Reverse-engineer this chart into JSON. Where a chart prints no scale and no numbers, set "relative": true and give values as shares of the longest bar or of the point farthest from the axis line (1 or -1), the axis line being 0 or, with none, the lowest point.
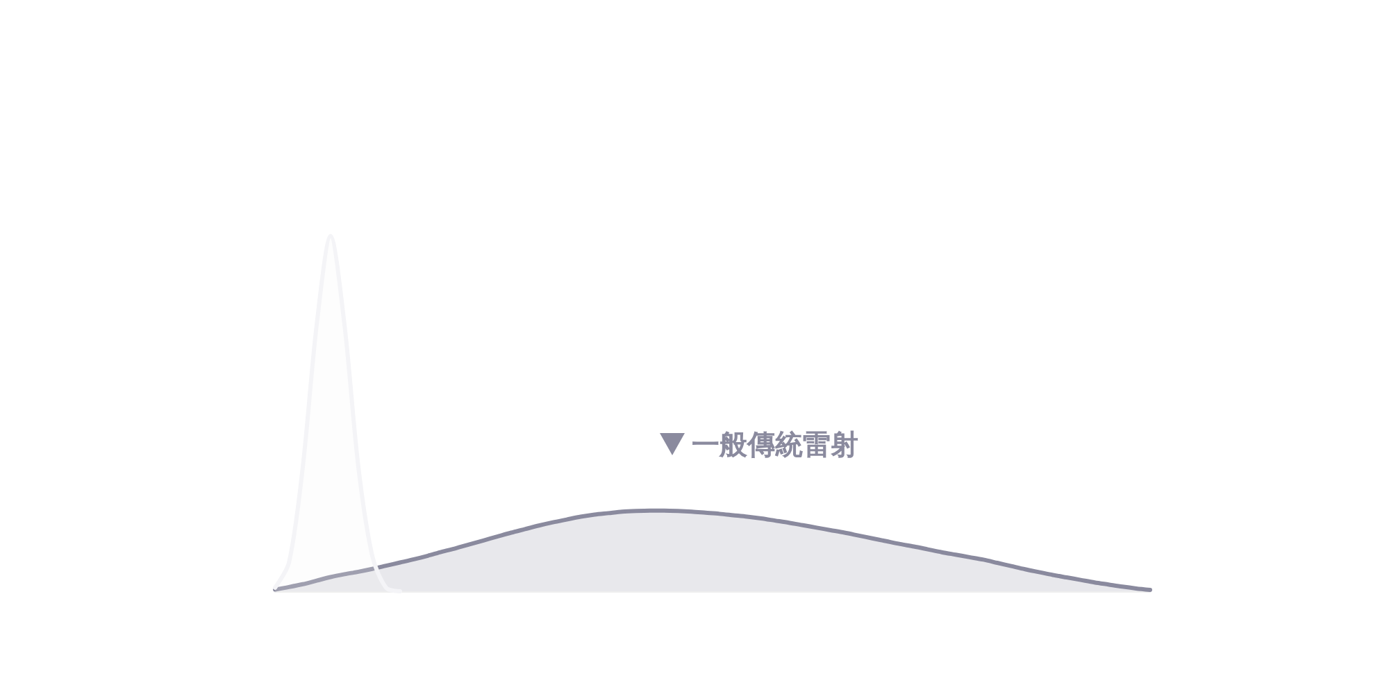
{
  "chart_data": {
    "type": "area",
    "relative": true,
    "legend": "bottom right",
    "categories": [
      null,
      null,
      null,
      null,
      null,
      null,
      null,
      null,
      null,
      null,
      null,
      null,
      null,
      null,
      null,
      null,
      null,
      null,
      null,
      null,
      null,
      null,
      null,
      null,
      null,
      null,
      null,
      null,
      null,
      null,
      null,
      null,
      null,
      null,
      null,
      null,
      null,
      null,
      null,
      null,
      null,
      null,
      null,
      null,
      null,
      null,
      null,
      null,
      null,
      null,
      null,
      null,
      null,
      null,
      null,
      null,
      null,
      null,
      null,
      null,
      null,
      null,
      null,
      null
    ],
    "series": [
      {
        "name": "一般傳統雷射",
        "color": "#8a8a9e",
        "values": [
          0.005,
          0.012,
          0.02,
          0.03,
          0.04,
          0.048,
          0.055,
          0.063,
          0.072,
          0.081,
          0.09,
          0.1,
          0.111,
          0.121,
          0.132,
          0.143,
          0.154,
          0.165,
          0.175,
          0.185,
          0.194,
          0.202,
          0.21,
          0.216,
          0.22,
          0.224,
          0.226,
          0.227,
          0.227,
          0.226,
          0.224,
          0.221,
          0.218,
          0.214,
          0.21,
          0.205,
          0.199,
          0.193,
          0.186,
          0.179,
          0.172,
          0.165,
          0.157,
          0.149,
          0.141,
          0.133,
          0.126,
          0.118,
          0.11,
          0.103,
          0.096,
          0.089,
          0.08,
          0.071,
          0.062,
          0.054,
          0.046,
          0.039,
          0.032,
          0.025,
          0.019,
          0.013,
          0.008,
          0.004
        ]
      },
      {
        "color": "#f4f4f7",
        "values": [
          0.01,
          0.08,
          0.35,
          0.75,
          1,
          0.75,
          0.35,
          0.1,
          0.01,
          0,
          null,
          null,
          null,
          null,
          null,
          null,
          null,
          null,
          null,
          null,
          null,
          null,
          null,
          null,
          null,
          null,
          null,
          null,
          null,
          null,
          null,
          null,
          null,
          null,
          null,
          null,
          null,
          null,
          null,
          null,
          null,
          null,
          null,
          null,
          null,
          null,
          null,
          null,
          null,
          null,
          null,
          null,
          null,
          null,
          null,
          null,
          null,
          null,
          null,
          null,
          null,
          null,
          null,
          null
        ]
      }
    ]
  }
}
